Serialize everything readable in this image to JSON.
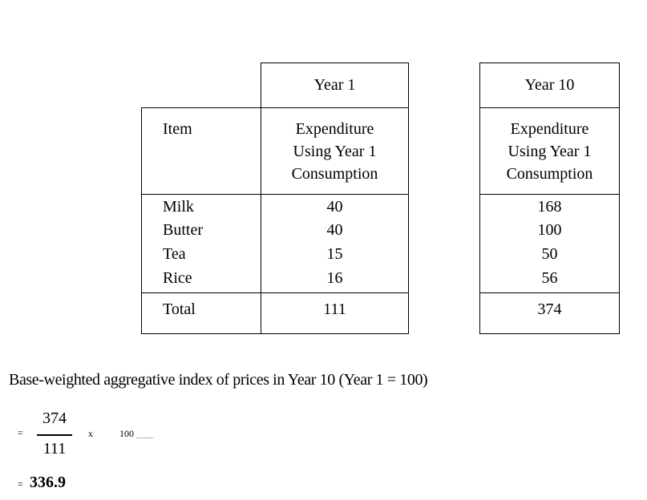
{
  "table": {
    "year1_header": "Year 1",
    "year10_header": "Year 10",
    "item_header": "Item",
    "expenditure_header_l1": "Expenditure",
    "expenditure_header_l2": "Using Year 1",
    "expenditure_header_l3": "Consumption",
    "rows": [
      {
        "item": "Milk",
        "year1": "40",
        "year10": "168"
      },
      {
        "item": "Butter",
        "year1": "40",
        "year10": "100"
      },
      {
        "item": "Tea",
        "year1": "15",
        "year10": "50"
      },
      {
        "item": "Rice",
        "year1": "16",
        "year10": "56"
      }
    ],
    "total_label": "Total",
    "total_year1": "111",
    "total_year10": "374"
  },
  "formula": {
    "heading": "Base-weighted aggregative index of prices in Year 10 (Year 1 = 100)",
    "equals": "=",
    "numerator": "374",
    "denominator": "111",
    "times": "x",
    "multiplier": "100",
    "result_equals": "=",
    "result": "336.9"
  }
}
